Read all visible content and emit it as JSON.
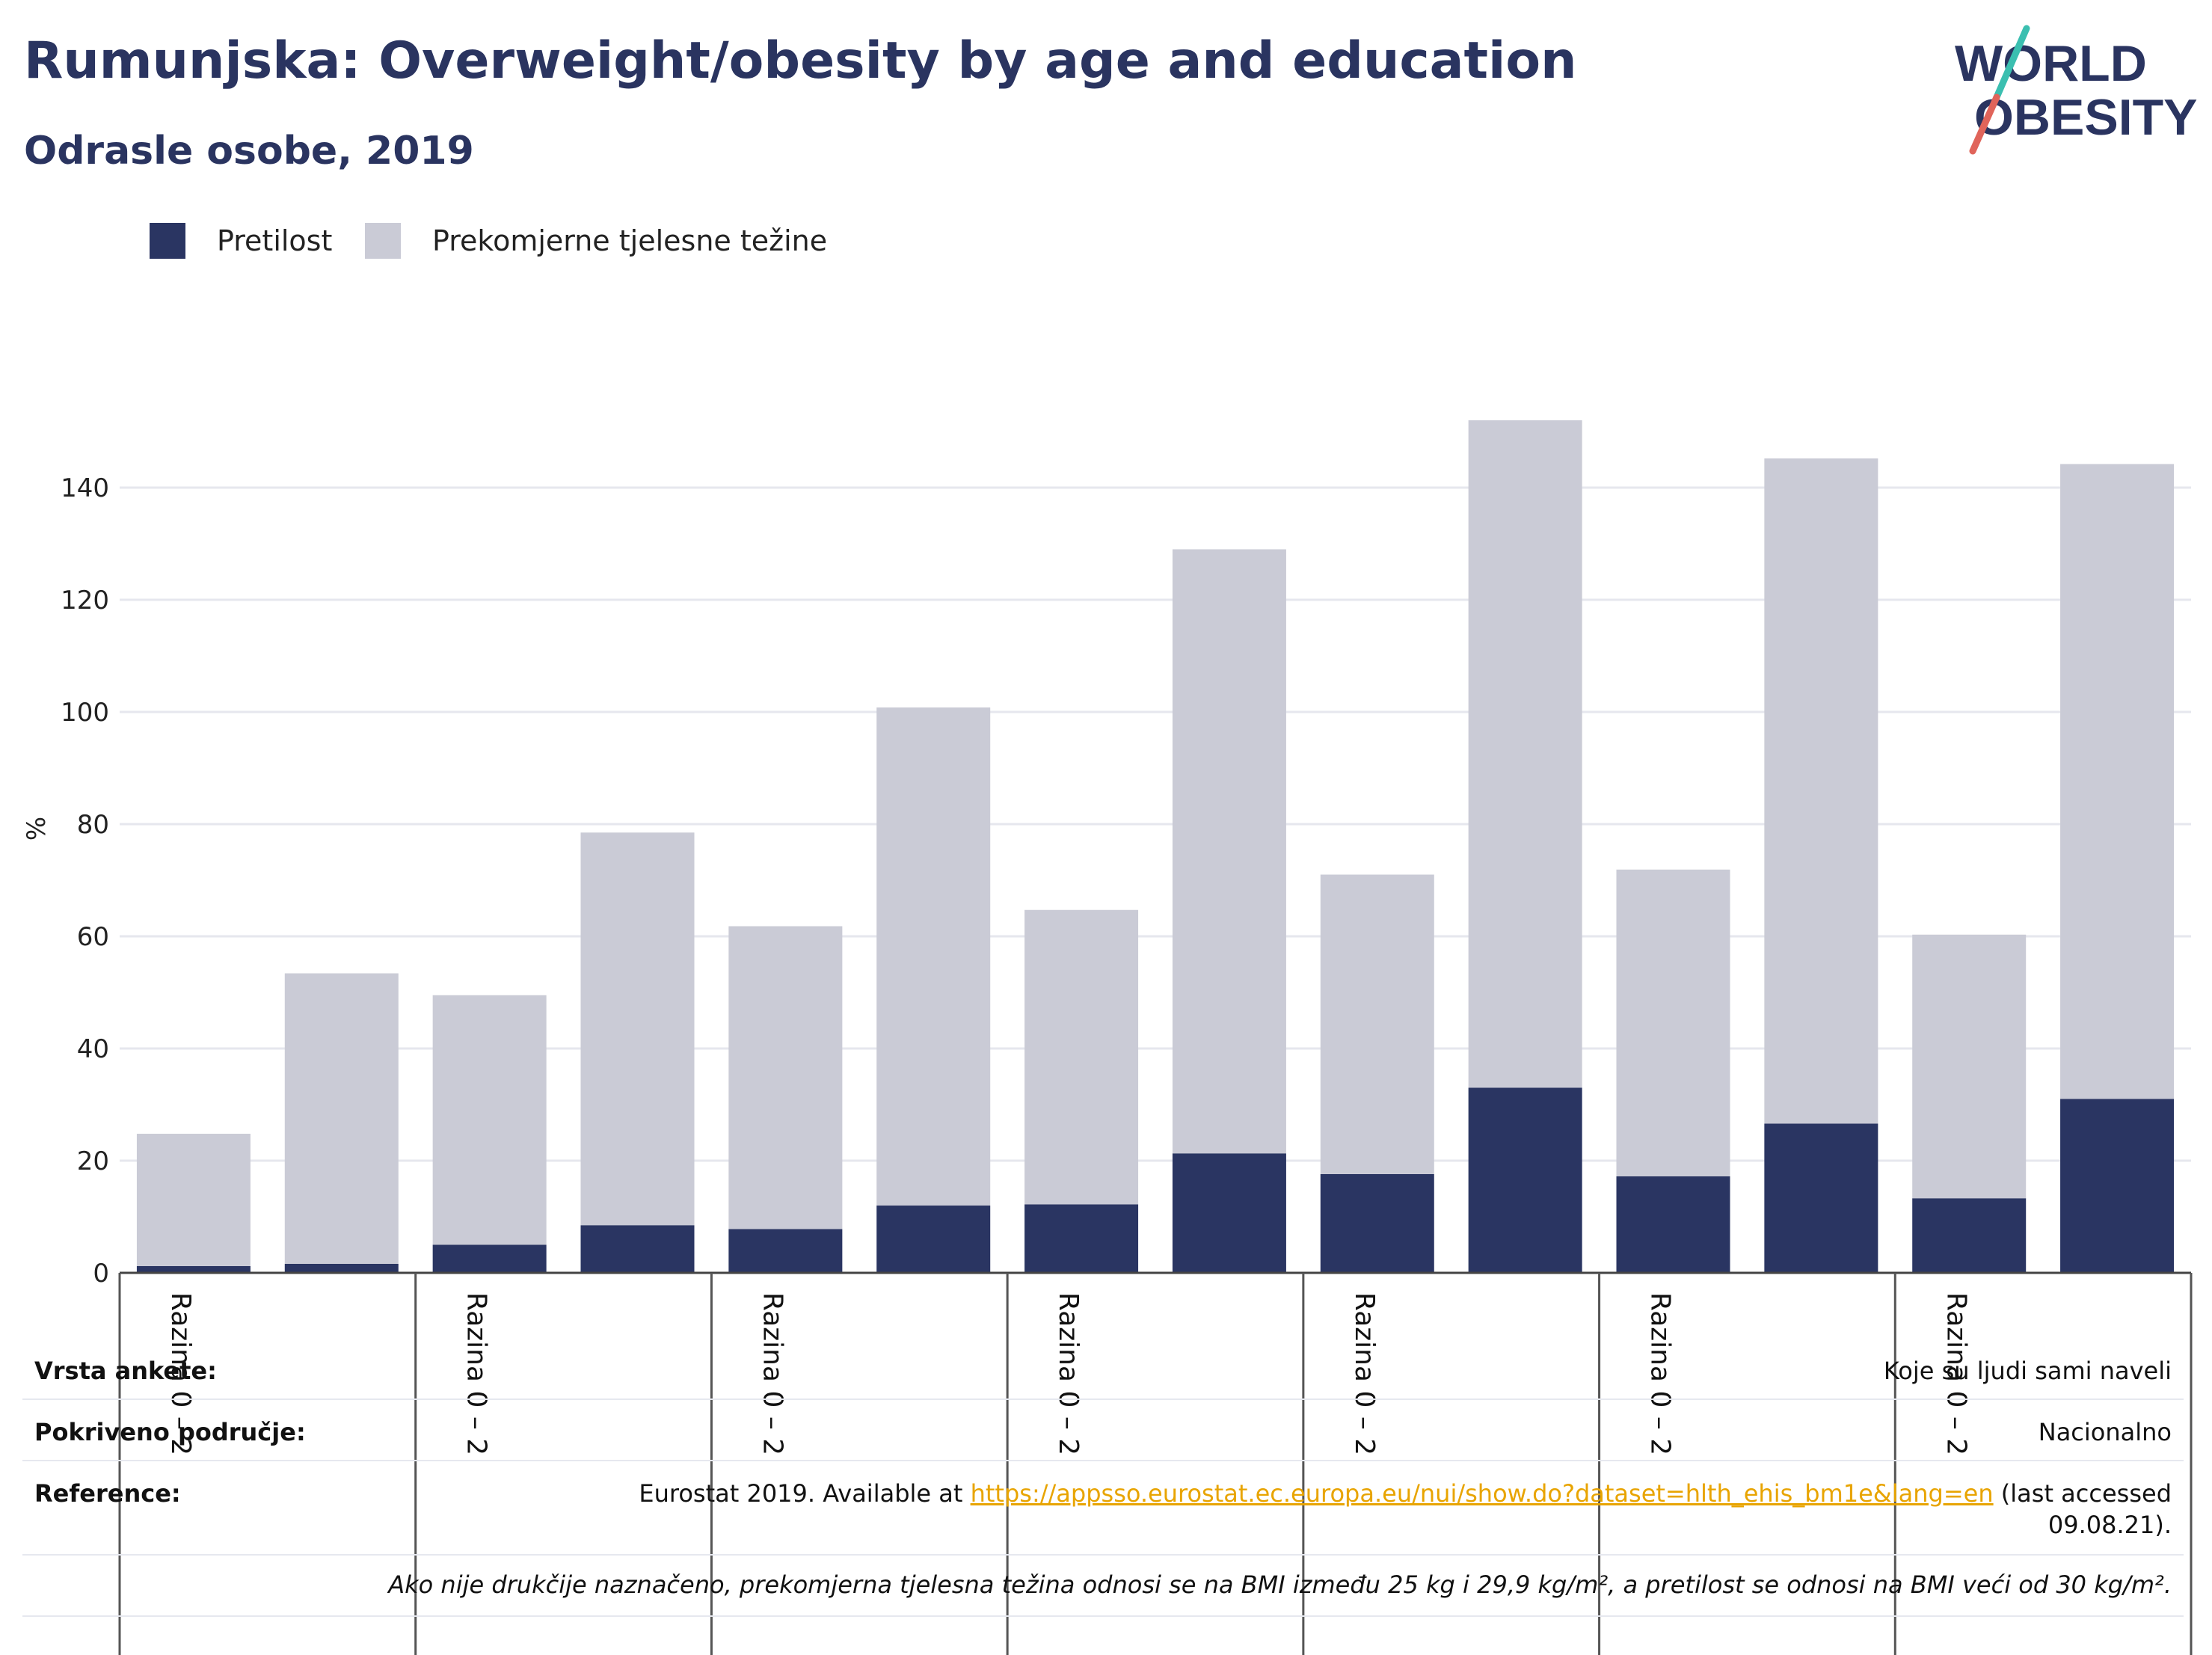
{
  "header": {
    "title": "Rumunjska: Overweight/obesity by age and education",
    "subtitle": "Odrasle osobe, 2019"
  },
  "logo": {
    "line1": "WORLD",
    "line2": "OBESITY",
    "accent_teal": "#3bbfb0",
    "accent_red": "#e0645a",
    "color": "#2a3460"
  },
  "legend": {
    "items": [
      {
        "label": "Pretilost",
        "color": "#2a3562"
      },
      {
        "label": "Prekomjerne tjelesne težine",
        "color": "#cacbd6"
      }
    ]
  },
  "chart_data": {
    "type": "bar",
    "stacked": true,
    "ylabel": "%",
    "ylim": [
      0,
      160
    ],
    "yticks": [
      0,
      20,
      40,
      60,
      80,
      100,
      120,
      140
    ],
    "grid": true,
    "group_labels": [
      "Razina 0 – 2",
      "Razina 0 – 2",
      "Razina 0 – 2",
      "Razina 0 – 2",
      "Razina 0 – 2",
      "Razina 0 – 2",
      "Razina 0 – 2"
    ],
    "series": [
      {
        "name": "Pretilost",
        "color": "#2a3562",
        "values": [
          1.2,
          1.6,
          5.0,
          8.5,
          7.8,
          12.0,
          12.2,
          21.3,
          17.6,
          33.0,
          17.2,
          26.6,
          13.3,
          31.0
        ]
      },
      {
        "name": "Prekomjerne tjelesne težine",
        "color": "#cacbd6",
        "values": [
          23.6,
          51.8,
          44.5,
          70.0,
          54.0,
          88.8,
          52.5,
          107.7,
          53.4,
          119.0,
          54.7,
          118.6,
          47.0,
          113.2
        ]
      }
    ]
  },
  "info": {
    "rows": [
      {
        "key": "Vrsta ankete:",
        "value": "Koje su ljudi sami naveli"
      },
      {
        "key": "Pokriveno područje:",
        "value": "Nacionalno"
      },
      {
        "key": "Reference:",
        "value_prefix": "Eurostat 2019. Available at ",
        "link": "https://appsso.eurostat.ec.europa.eu/nui/show.do?dataset=hlth_ehis_bm1e&lang=en",
        "value_suffix": " (last accessed",
        "value_line2": "09.08.21)."
      },
      {
        "key": "",
        "value": "Ako nije drukčije naznačeno, prekomjerna tjelesna težina odnosi se na BMI između 25 kg i 29,9 kg/m², a pretilost se odnosi na BMI veći od 30 kg/m²."
      }
    ]
  }
}
